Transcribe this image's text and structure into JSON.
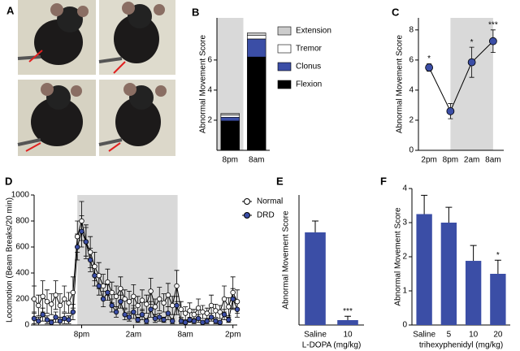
{
  "photo_panel": {
    "label": "A"
  },
  "chart_data": [
    {
      "label": "B",
      "type": "stacked_bar",
      "ylabel": "Abnormal Movement Score",
      "categories": [
        "8pm",
        "8am"
      ],
      "series": [
        {
          "name": "Flexion",
          "color": "#000000",
          "values": [
            1.95,
            6.2
          ]
        },
        {
          "name": "Clonus",
          "color": "#3b4ea6",
          "values": [
            0.25,
            1.2
          ]
        },
        {
          "name": "Tremor",
          "color": "#ffffff",
          "values": [
            0.15,
            0.25
          ]
        },
        {
          "name": "Extension",
          "color": "#cccccc",
          "values": [
            0.1,
            0.15
          ]
        }
      ],
      "ylim": [
        0,
        8.8
      ],
      "yticks": [
        2,
        4,
        6
      ],
      "shaded_categories": [
        0,
        0
      ],
      "legend": "right"
    },
    {
      "label": "C",
      "type": "line",
      "ylabel": "Abnormal Movement Score",
      "categories": [
        "2pm",
        "8pm",
        "2am",
        "8am"
      ],
      "series": [
        {
          "color": "#3b4ea6",
          "values": [
            5.5,
            2.6,
            5.85,
            7.25
          ],
          "errors": [
            0.25,
            0.5,
            1.0,
            0.75
          ]
        }
      ],
      "annotations": [
        "*",
        null,
        "*",
        "***"
      ],
      "ylim": [
        0,
        8.8
      ],
      "yticks": [
        0,
        2,
        4,
        6,
        8
      ],
      "shaded_categories": [
        1,
        3
      ]
    },
    {
      "label": "D",
      "type": "line",
      "ylabel": "Locomotion (Beam Breaks/20 min)",
      "x": [
        0,
        0.5,
        1,
        1.5,
        2,
        2.5,
        3,
        3.5,
        4,
        4.5,
        5,
        5.5,
        6,
        6.5,
        7,
        7.5,
        8,
        8.5,
        9,
        9.5,
        10,
        10.5,
        11,
        11.5,
        12,
        12.5,
        13,
        13.5,
        14,
        14.5,
        15,
        15.5,
        16,
        16.5,
        17,
        17.5,
        18,
        18.5,
        19,
        19.5,
        20,
        20.5,
        21,
        21.5,
        22,
        22.5,
        23,
        23.5
      ],
      "xlim": [
        0,
        23.5
      ],
      "xticks": [
        {
          "value": 5.5,
          "label": "8pm"
        },
        {
          "value": 11.5,
          "label": "2am"
        },
        {
          "value": 17.5,
          "label": "8am"
        },
        {
          "value": 23,
          "label": "2pm"
        }
      ],
      "ylim": [
        0,
        1000
      ],
      "yticks": [
        0,
        200,
        400,
        600,
        800,
        1000
      ],
      "shaded_x": [
        5,
        16.6
      ],
      "legend": "upper right",
      "series": [
        {
          "name": "Normal",
          "color": "#ffffff",
          "values": [
            200,
            150,
            220,
            180,
            160,
            230,
            150,
            200,
            170,
            250,
            680,
            800,
            640,
            560,
            450,
            380,
            300,
            330,
            250,
            220,
            280,
            200,
            180,
            220,
            150,
            190,
            160,
            260,
            140,
            200,
            170,
            230,
            150,
            300,
            120,
            90,
            110,
            80,
            130,
            100,
            90,
            150,
            110,
            100,
            200,
            140,
            250,
            180
          ],
          "errors": [
            100,
            80,
            120,
            90,
            80,
            110,
            90,
            100,
            80,
            120,
            120,
            150,
            130,
            120,
            110,
            100,
            90,
            100,
            80,
            80,
            90,
            70,
            80,
            90,
            70,
            80,
            70,
            100,
            60,
            90,
            70,
            90,
            70,
            120,
            60,
            50,
            60,
            40,
            70,
            50,
            40,
            80,
            50,
            50,
            100,
            70,
            120,
            90
          ]
        },
        {
          "name": "DRD",
          "color": "#3b4ea6",
          "values": [
            50,
            30,
            80,
            40,
            20,
            60,
            30,
            50,
            40,
            100,
            600,
            720,
            640,
            500,
            380,
            300,
            200,
            250,
            150,
            100,
            180,
            80,
            60,
            100,
            40,
            80,
            30,
            120,
            50,
            60,
            40,
            90,
            30,
            150,
            30,
            20,
            40,
            30,
            50,
            20,
            30,
            60,
            30,
            20,
            80,
            40,
            200,
            120
          ],
          "errors": [
            40,
            30,
            50,
            30,
            20,
            40,
            30,
            40,
            30,
            60,
            100,
            120,
            110,
            90,
            80,
            70,
            60,
            60,
            50,
            40,
            50,
            40,
            30,
            50,
            20,
            40,
            20,
            60,
            30,
            30,
            20,
            50,
            20,
            70,
            20,
            10,
            20,
            20,
            30,
            10,
            20,
            30,
            20,
            10,
            40,
            20,
            80,
            60
          ]
        }
      ]
    },
    {
      "label": "E",
      "type": "bar",
      "ylabel": "Abnormal Movement Score",
      "xlabel": "L-DOPA (mg/kg)",
      "categories": [
        "Saline",
        "10"
      ],
      "values": [
        2.85,
        0.15
      ],
      "errors": [
        0.35,
        0.12
      ],
      "annotations": [
        null,
        "***"
      ],
      "color": "#3b4ea6",
      "ylim": [
        0,
        4
      ]
    },
    {
      "label": "F",
      "type": "bar",
      "ylabel": "Abnormal Movement Score",
      "xlabel": "trihexyphenidyl (mg/kg)",
      "categories": [
        "Saline",
        "5",
        "10",
        "20"
      ],
      "values": [
        3.25,
        3.0,
        1.88,
        1.5
      ],
      "errors": [
        0.55,
        0.45,
        0.45,
        0.4
      ],
      "annotations": [
        null,
        null,
        null,
        "*"
      ],
      "color": "#3b4ea6",
      "ylim": [
        0,
        4
      ],
      "yticks": [
        0,
        1,
        2,
        3,
        4
      ]
    }
  ]
}
